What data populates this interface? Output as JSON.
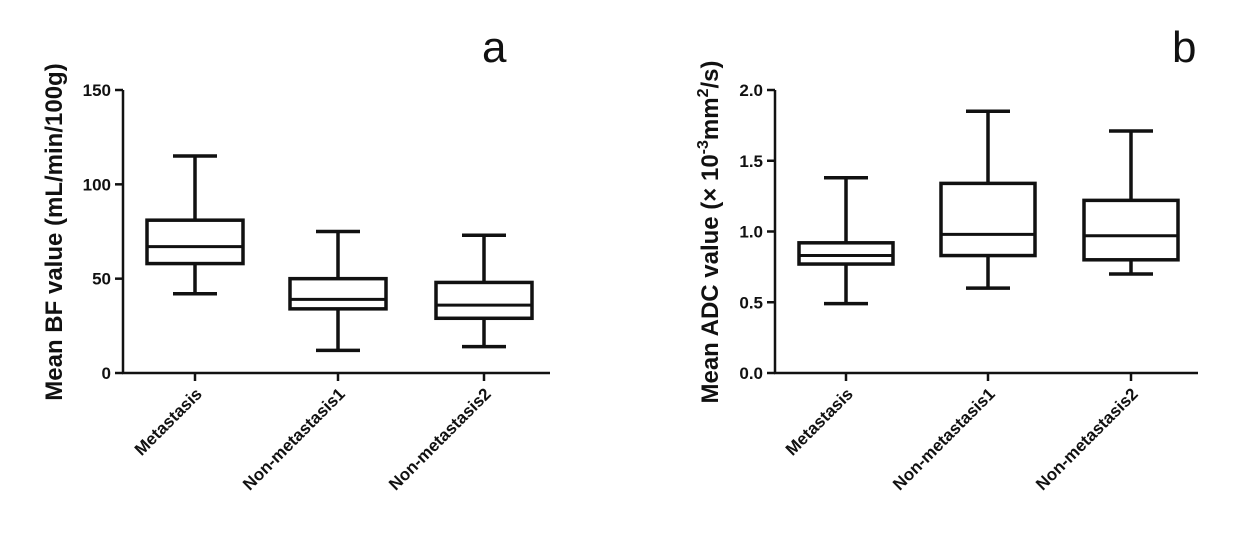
{
  "chart_data": [
    {
      "type": "box",
      "panel_label": "a",
      "ylabel": "Mean BF value (mL/min/100g)",
      "ylim": [
        0,
        150
      ],
      "yticks": [
        0,
        50,
        100,
        150
      ],
      "ytick_labels": [
        "0",
        "50",
        "100",
        "150"
      ],
      "categories": [
        "Metastasis",
        "Non-metastasis1",
        "Non-metastasis2"
      ],
      "boxes": [
        {
          "min": 42,
          "q1": 58,
          "median": 67,
          "q3": 81,
          "max": 115
        },
        {
          "min": 12,
          "q1": 34,
          "median": 39,
          "q3": 50,
          "max": 75
        },
        {
          "min": 14,
          "q1": 29,
          "median": 36,
          "q3": 48,
          "max": 73
        }
      ]
    },
    {
      "type": "box",
      "panel_label": "b",
      "ylabel": {
        "pre": "Mean ADC value (× 10",
        "sup1": "-3",
        "mid": "mm",
        "sup2": "2",
        "post": "/s)"
      },
      "ylim": [
        0,
        2.0
      ],
      "yticks": [
        0,
        0.5,
        1.0,
        1.5,
        2.0
      ],
      "ytick_labels": [
        "0.0",
        "0.5",
        "1.0",
        "1.5",
        "2.0"
      ],
      "categories": [
        "Metastasis",
        "Non-metastasis1",
        "Non-metastasis2"
      ],
      "boxes": [
        {
          "min": 0.49,
          "q1": 0.77,
          "median": 0.83,
          "q3": 0.92,
          "max": 1.38
        },
        {
          "min": 0.6,
          "q1": 0.83,
          "median": 0.98,
          "q3": 1.34,
          "max": 1.85
        },
        {
          "min": 0.7,
          "q1": 0.8,
          "median": 0.97,
          "q3": 1.22,
          "max": 1.71
        }
      ]
    }
  ]
}
